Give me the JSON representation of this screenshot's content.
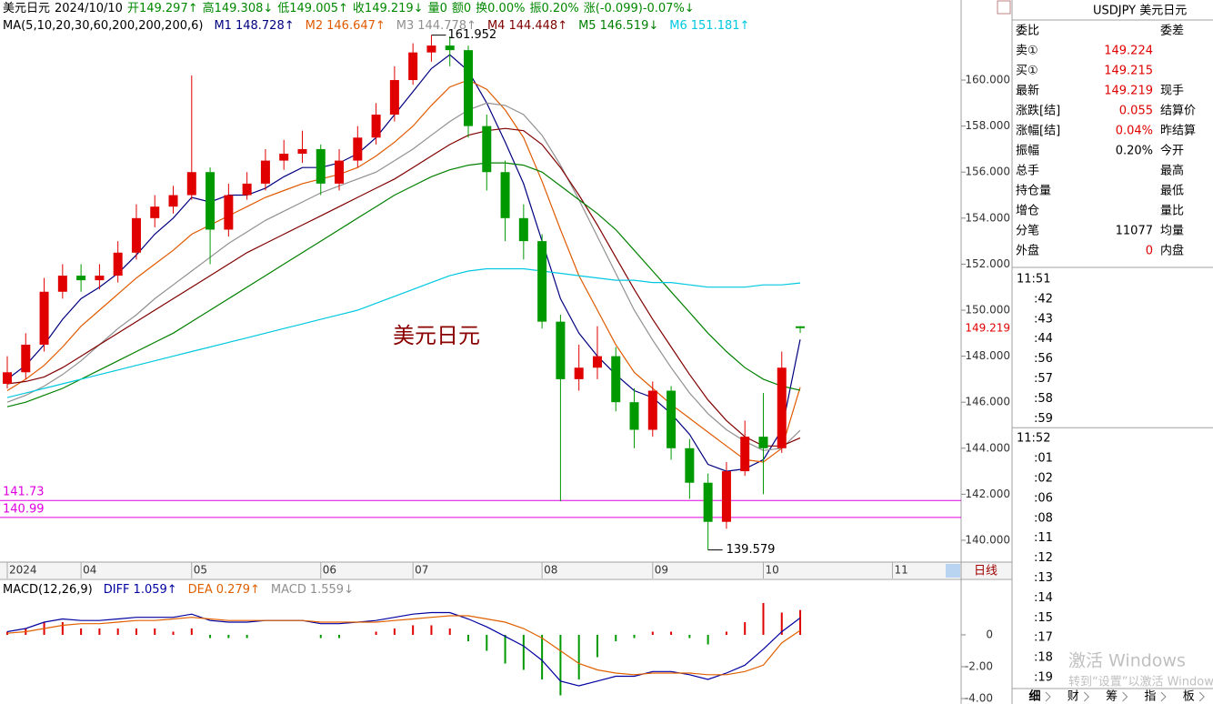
{
  "header": [
    {
      "text": "美元日元",
      "color": "#000000"
    },
    {
      "text": "2024/10/10",
      "color": "#000000"
    },
    {
      "text": "开149.297↑",
      "color": "#008800"
    },
    {
      "text": "高149.308↓",
      "color": "#008800"
    },
    {
      "text": "低149.005↑",
      "color": "#008800"
    },
    {
      "text": "收149.219↓",
      "color": "#008800"
    },
    {
      "text": "量0",
      "color": "#008800"
    },
    {
      "text": "额0",
      "color": "#008800"
    },
    {
      "text": "换0.00%",
      "color": "#008800"
    },
    {
      "text": "振0.20%",
      "color": "#008800"
    },
    {
      "text": "涨(-0.099)-0.07%↓",
      "color": "#008800"
    }
  ],
  "chart_data": [
    {
      "type": "candlestick",
      "title": "美元日元",
      "legend_title": "MA(5,10,20,30,60,200,200,200,6)",
      "period_tab": "日线",
      "up_color": "#e00000",
      "down_color": "#009900",
      "hline_color": "#e000e0",
      "categories": [
        "2024",
        null,
        null,
        null,
        "04",
        null,
        null,
        null,
        null,
        null,
        "05",
        null,
        null,
        null,
        null,
        null,
        null,
        "06",
        null,
        null,
        null,
        null,
        "07",
        null,
        null,
        null,
        null,
        null,
        null,
        "08",
        null,
        null,
        null,
        null,
        null,
        "09",
        null,
        null,
        null,
        null,
        null,
        "10",
        null,
        null,
        null,
        null,
        null,
        null,
        "11",
        null
      ],
      "open": [
        146.8,
        147.3,
        148.5,
        150.8,
        151.5,
        151.3,
        151.5,
        152.5,
        154.0,
        154.5,
        155.0,
        156.0,
        153.5,
        155.0,
        155.5,
        156.5,
        156.8,
        157.0,
        155.5,
        156.5,
        157.5,
        158.5,
        160.0,
        161.2,
        161.5,
        161.3,
        158.0,
        156.0,
        154.0,
        153.0,
        149.5,
        147.0,
        147.5,
        148.0,
        146.0,
        144.8,
        146.5,
        144.0,
        142.5,
        140.8,
        143.0,
        144.5,
        144.0,
        149.297,
        null,
        null,
        null,
        null,
        null,
        null
      ],
      "high": [
        148.0,
        149.0,
        151.4,
        152.0,
        152.0,
        152.0,
        153.0,
        154.6,
        155.0,
        155.4,
        160.2,
        156.2,
        155.5,
        156.0,
        157.0,
        157.4,
        157.8,
        157.2,
        157.0,
        158.0,
        159.0,
        160.6,
        161.6,
        161.952,
        161.9,
        161.5,
        158.5,
        156.5,
        154.6,
        153.3,
        149.8,
        148.5,
        149.3,
        148.4,
        146.6,
        146.9,
        146.7,
        144.4,
        142.9,
        143.4,
        145.2,
        146.4,
        148.2,
        149.308,
        null,
        null,
        null,
        null,
        null,
        null
      ],
      "low": [
        146.6,
        147.0,
        148.2,
        150.5,
        150.8,
        150.9,
        151.2,
        152.2,
        153.6,
        154.2,
        154.8,
        152.0,
        153.2,
        154.8,
        155.2,
        156.1,
        156.4,
        155.0,
        155.2,
        156.2,
        157.2,
        158.2,
        159.8,
        160.8,
        160.6,
        157.5,
        155.2,
        153.0,
        152.2,
        149.2,
        141.7,
        146.5,
        147.0,
        145.6,
        144.0,
        144.5,
        143.5,
        141.8,
        139.579,
        140.5,
        142.8,
        142.0,
        143.8,
        149.005,
        null,
        null,
        null,
        null,
        null,
        null
      ],
      "close": [
        147.3,
        148.5,
        150.8,
        151.5,
        151.3,
        151.5,
        152.5,
        154.0,
        154.5,
        155.0,
        156.0,
        153.5,
        155.0,
        155.5,
        156.5,
        156.8,
        157.0,
        155.5,
        156.5,
        157.5,
        158.5,
        160.0,
        161.2,
        161.5,
        161.3,
        158.0,
        156.0,
        154.0,
        153.0,
        149.5,
        147.0,
        147.5,
        148.0,
        146.0,
        144.8,
        146.5,
        144.0,
        142.5,
        140.8,
        143.0,
        144.5,
        144.0,
        147.5,
        149.219,
        null,
        null,
        null,
        null,
        null,
        null
      ],
      "series": [
        {
          "name": "M1",
          "color": "#000080",
          "value_label": "148.728↑",
          "values": [
            147.0,
            147.6,
            148.5,
            149.6,
            150.5,
            151.0,
            151.6,
            152.4,
            153.3,
            154.0,
            154.9,
            154.7,
            155.0,
            155.0,
            155.3,
            155.8,
            156.2,
            156.2,
            156.4,
            156.8,
            157.5,
            158.5,
            159.5,
            160.5,
            161.1,
            160.4,
            159.0,
            157.3,
            155.5,
            153.0,
            150.5,
            149.0,
            148.0,
            147.2,
            146.5,
            146.2,
            145.5,
            144.6,
            143.3,
            143.0,
            143.1,
            143.5,
            144.8,
            148.728,
            null,
            null,
            null,
            null,
            null,
            null
          ]
        },
        {
          "name": "M2",
          "color": "#e05a00",
          "value_label": "146.647↑",
          "values": [
            146.5,
            147.0,
            147.6,
            148.4,
            149.3,
            150.0,
            150.7,
            151.4,
            152.0,
            152.6,
            153.3,
            153.7,
            154.1,
            154.5,
            154.9,
            155.2,
            155.5,
            155.7,
            155.9,
            156.2,
            156.7,
            157.3,
            158.0,
            158.9,
            159.7,
            160.0,
            159.6,
            158.7,
            157.5,
            155.6,
            153.5,
            151.5,
            150.0,
            148.5,
            147.3,
            146.6,
            145.9,
            145.3,
            144.7,
            144.1,
            143.5,
            143.4,
            144.0,
            146.647,
            null,
            null,
            null,
            null,
            null,
            null
          ]
        },
        {
          "name": "M3",
          "color": "#909090",
          "value_label": "144.778↑",
          "values": [
            146.0,
            146.3,
            146.7,
            147.2,
            147.8,
            148.5,
            149.2,
            149.8,
            150.5,
            151.1,
            151.7,
            152.3,
            152.9,
            153.4,
            153.9,
            154.3,
            154.7,
            155.1,
            155.4,
            155.7,
            156.0,
            156.5,
            157.0,
            157.6,
            158.2,
            158.7,
            159.0,
            158.9,
            158.5,
            157.6,
            156.3,
            154.8,
            153.2,
            151.6,
            150.0,
            148.7,
            147.5,
            146.4,
            145.5,
            144.8,
            144.3,
            143.9,
            144.0,
            144.778,
            null,
            null,
            null,
            null,
            null,
            null
          ]
        },
        {
          "name": "M4",
          "color": "#800000",
          "value_label": "144.448↑",
          "values": [
            146.8,
            146.9,
            147.1,
            147.5,
            148.0,
            148.5,
            149.0,
            149.5,
            150.0,
            150.5,
            151.0,
            151.5,
            152.0,
            152.5,
            152.9,
            153.3,
            153.7,
            154.1,
            154.5,
            154.9,
            155.3,
            155.7,
            156.2,
            156.7,
            157.2,
            157.6,
            157.8,
            157.9,
            157.8,
            157.2,
            156.2,
            155.0,
            153.7,
            152.3,
            150.9,
            149.6,
            148.4,
            147.2,
            146.1,
            145.2,
            144.5,
            144.1,
            144.1,
            144.448,
            null,
            null,
            null,
            null,
            null,
            null
          ]
        },
        {
          "name": "M5",
          "color": "#008000",
          "value_label": "146.519↓",
          "values": [
            145.8,
            146.0,
            146.3,
            146.6,
            147.0,
            147.4,
            147.8,
            148.2,
            148.6,
            149.0,
            149.5,
            150.0,
            150.5,
            151.0,
            151.5,
            152.0,
            152.5,
            153.0,
            153.5,
            154.0,
            154.5,
            155.0,
            155.4,
            155.8,
            156.1,
            156.3,
            156.4,
            156.4,
            156.3,
            156.0,
            155.4,
            154.8,
            154.2,
            153.5,
            152.6,
            151.7,
            150.8,
            149.9,
            149.0,
            148.2,
            147.5,
            147.0,
            146.7,
            146.519,
            null,
            null,
            null,
            null,
            null,
            null
          ]
        },
        {
          "name": "M6",
          "color": "#00c8e0",
          "value_label": "151.181↑",
          "values": [
            146.2,
            146.4,
            146.6,
            146.8,
            147.0,
            147.2,
            147.4,
            147.6,
            147.8,
            148.0,
            148.2,
            148.4,
            148.6,
            148.8,
            149.0,
            149.2,
            149.4,
            149.6,
            149.8,
            150.0,
            150.3,
            150.6,
            150.9,
            151.2,
            151.5,
            151.7,
            151.8,
            151.8,
            151.8,
            151.7,
            151.6,
            151.5,
            151.4,
            151.3,
            151.3,
            151.2,
            151.2,
            151.1,
            151.0,
            151.0,
            151.0,
            151.1,
            151.1,
            151.181,
            null,
            null,
            null,
            null,
            null,
            null
          ]
        }
      ],
      "ylim": [
        139.05,
        163.48
      ],
      "yticks": [
        {
          "value": 140,
          "label": "140.000"
        },
        {
          "value": 142,
          "label": "142.000"
        },
        {
          "value": 144,
          "label": "144.000"
        },
        {
          "value": 146,
          "label": "146.000"
        },
        {
          "value": 148,
          "label": "148.000"
        },
        {
          "value": 150,
          "label": "150.000"
        },
        {
          "value": 152,
          "label": "152.000"
        },
        {
          "value": 154,
          "label": "154.000"
        },
        {
          "value": 156,
          "label": "156.000"
        },
        {
          "value": 158,
          "label": "158.000"
        },
        {
          "value": 160,
          "label": "160.000"
        }
      ],
      "hlines": [
        141.73,
        140.99
      ]
    },
    {
      "type": "macd",
      "title": "MACD(12,26,9)",
      "series": [
        {
          "name": "DIFF",
          "color": "#0000a0",
          "value_label": "1.059↑",
          "values": [
            0.2,
            0.4,
            0.8,
            1.0,
            0.9,
            0.9,
            1.0,
            1.1,
            1.1,
            1.1,
            1.3,
            0.9,
            0.8,
            0.8,
            0.9,
            0.9,
            0.9,
            0.7,
            0.7,
            0.8,
            0.9,
            1.1,
            1.3,
            1.4,
            1.4,
            1.0,
            0.5,
            -0.1,
            -0.7,
            -1.6,
            -2.9,
            -3.2,
            -2.9,
            -2.6,
            -2.6,
            -2.3,
            -2.3,
            -2.5,
            -2.8,
            -2.4,
            -1.9,
            -0.9,
            0.2,
            1.059,
            null,
            null,
            null,
            null,
            null,
            null
          ]
        },
        {
          "name": "DEA",
          "color": "#e06000",
          "value_label": "0.279↑",
          "values": [
            0.1,
            0.2,
            0.4,
            0.6,
            0.7,
            0.7,
            0.8,
            0.9,
            0.9,
            1.0,
            1.1,
            1.0,
            0.9,
            0.9,
            0.9,
            0.9,
            0.9,
            0.8,
            0.8,
            0.8,
            0.8,
            0.9,
            1.0,
            1.1,
            1.2,
            1.2,
            1.0,
            0.8,
            0.4,
            -0.2,
            -1.0,
            -1.8,
            -2.2,
            -2.4,
            -2.5,
            -2.4,
            -2.4,
            -2.4,
            -2.5,
            -2.5,
            -2.3,
            -1.9,
            -0.5,
            0.279,
            null,
            null,
            null,
            null,
            null,
            null
          ]
        }
      ],
      "histogram": {
        "name": "MACD",
        "color": "#909090",
        "value_label": "1.559↓",
        "up_color": "#e00000",
        "down_color": "#009900",
        "values": [
          0.2,
          0.4,
          0.8,
          0.8,
          0.4,
          0.4,
          0.4,
          0.4,
          0.4,
          0.2,
          0.4,
          -0.2,
          -0.2,
          -0.2,
          0,
          0,
          0,
          -0.2,
          -0.2,
          0,
          0.2,
          0.4,
          0.6,
          0.6,
          0.4,
          -0.4,
          -1.0,
          -1.8,
          -2.2,
          -2.8,
          -3.8,
          -2.8,
          -1.4,
          -0.4,
          -0.2,
          0.2,
          0.2,
          -0.2,
          -0.6,
          0.2,
          0.8,
          2.0,
          1.4,
          1.559,
          null,
          null,
          null,
          null,
          null,
          null
        ]
      },
      "ylim": [
        -4.34,
        3.31
      ],
      "yticks": [
        0,
        {
          "value": -2,
          "label": "-2.00"
        },
        {
          "value": -4,
          "label": "-4.00"
        }
      ]
    }
  ],
  "quote_panel": {
    "title": "USDJPY 美元日元",
    "rows": [
      {
        "label": "委比",
        "right": "委差"
      },
      {
        "label": "卖①",
        "value": 149.224
      },
      {
        "label": "买①",
        "value": 149.215
      },
      {
        "label": "最新",
        "value": 149.219,
        "right": "现手"
      },
      {
        "label": "涨跌[结]",
        "value": 0.055,
        "right": "结算价"
      },
      {
        "label": "涨幅[结]",
        "value": "0.04%",
        "right": "昨结算"
      },
      {
        "label": "振幅",
        "value": "0.20%",
        "right": "今开",
        "color": "#000000"
      },
      {
        "label": "总手",
        "right": "最高"
      },
      {
        "label": "持仓量",
        "right": "最低"
      },
      {
        "label": "增仓",
        "right": "量比"
      },
      {
        "label": "分笔",
        "value": 11077,
        "right": "均量",
        "color": "#000000"
      },
      {
        "label": "外盘",
        "value": 0,
        "right": "内盘"
      }
    ],
    "value_color": "#e00000"
  },
  "time_list": [
    "11:51",
    ":42",
    ":43",
    ":44",
    ":56",
    ":57",
    ":58",
    ":59",
    "11:52",
    ":01",
    ":02",
    ":06",
    ":08",
    ":11",
    ":12",
    ":13",
    ":14",
    ":15",
    ":17",
    ":18",
    ":19"
  ],
  "tabs": [
    "细",
    "财",
    "筹",
    "指",
    "板"
  ],
  "watermark": [
    "激活 Windows",
    "转到“设置”以激活 Windows"
  ]
}
